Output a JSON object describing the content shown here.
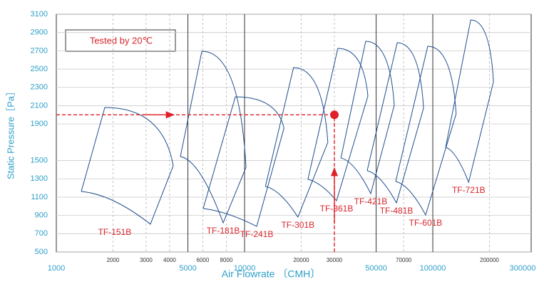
{
  "chart_data": {
    "type": "region",
    "ylabel": "Static Pressure［Pa］",
    "xlabel": "Air Flowrate 〔CMH〕",
    "annotation": "Tested  by 20℃",
    "xlog": true,
    "xlim": [
      1000,
      300000
    ],
    "ylim": [
      500,
      3100
    ],
    "xticks": [
      1000,
      5000,
      10000,
      50000,
      100000,
      300000
    ],
    "xticks_minor": [
      2000,
      3000,
      4000,
      6000,
      8000,
      20000,
      30000,
      70000,
      200000
    ],
    "yticks": [
      500,
      700,
      900,
      1100,
      1300,
      1500,
      1900,
      2100,
      2300,
      2500,
      2700,
      2900,
      3100
    ],
    "color": "#1f4e8c",
    "point": {
      "x": 30000,
      "y": 2000,
      "color": "#e0202a"
    },
    "series": [
      {
        "name": "TF-151B",
        "x": [
          1357,
          1810,
          4180,
          3160
        ],
        "y": [
          1162,
          2080,
          1442,
          804
        ]
      },
      {
        "name": "TF-181B",
        "x": [
          4560,
          5930,
          10180,
          7700
        ],
        "y": [
          1543,
          2695,
          1426,
          819
        ]
      },
      {
        "name": "TF-241B",
        "x": [
          6030,
          8930,
          16200,
          11600
        ],
        "y": [
          975,
          2197,
          1855,
          780
        ]
      },
      {
        "name": "TF-301B",
        "x": [
          12900,
          18200,
          27700,
          19200
        ],
        "y": [
          1216,
          2516,
          1699,
          882
        ]
      },
      {
        "name": "TF-361B",
        "x": [
          21700,
          31300,
          45200,
          30800
        ],
        "y": [
          1294,
          2726,
          2205,
          1061
        ]
      },
      {
        "name": "TF-421B",
        "x": [
          32500,
          44000,
          62400,
          46800
        ],
        "y": [
          1528,
          2804,
          2104,
          1138
        ]
      },
      {
        "name": "TF-481B",
        "x": [
          44800,
          64700,
          89300,
          64100
        ],
        "y": [
          1388,
          2789,
          2073,
          1037
        ]
      },
      {
        "name": "TF-601B",
        "x": [
          63500,
          94000,
          133000,
          91600
        ],
        "y": [
          1271,
          2750,
          2010,
          905
        ]
      },
      {
        "name": "TF-721B",
        "x": [
          117000,
          159000,
          210000,
          155000
        ],
        "y": [
          1644,
          3038,
          2361,
          1263
        ]
      }
    ]
  }
}
